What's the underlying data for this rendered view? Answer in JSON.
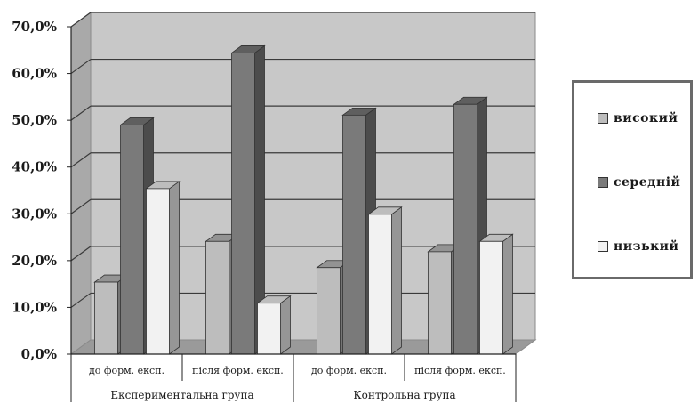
{
  "chart_data": {
    "type": "bar",
    "categories": [
      "до форм. експ.",
      "після форм. експ.",
      "до форм. експ.",
      "після форм. експ."
    ],
    "groups": [
      "Експериментальна група",
      "Контрольна група"
    ],
    "series": [
      {
        "name": "високий",
        "values": [
          15.4,
          24.1,
          18.5,
          21.9
        ],
        "color": "#bdbdbd"
      },
      {
        "name": "середній",
        "values": [
          49.0,
          64.4,
          51.1,
          53.4
        ],
        "color": "#7a7a7a"
      },
      {
        "name": "низький",
        "values": [
          35.4,
          10.9,
          29.9,
          24.1
        ],
        "color": "#f2f2f2"
      }
    ],
    "yticks": [
      "0,0%",
      "10,0%",
      "20,0%",
      "30,0%",
      "40,0%",
      "50,0%",
      "60,0%",
      "70,0%"
    ],
    "ylim": [
      0,
      70
    ],
    "grid": true,
    "legend_position": "right",
    "title": "",
    "xlabel": "",
    "ylabel": ""
  }
}
